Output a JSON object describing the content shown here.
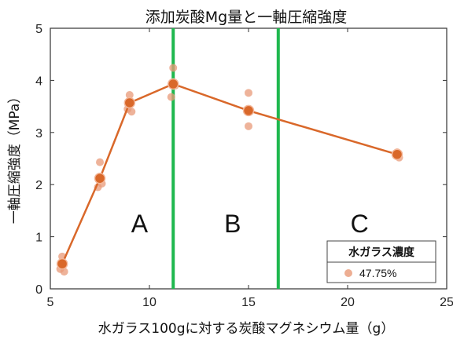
{
  "chart_data": {
    "type": "line",
    "title": "添加炭酸Mg量と一軸圧縮強度",
    "xlabel": "水ガラス100gに対する炭酸マグネシウム量（g）",
    "ylabel": "一軸圧縮強度（MPa）",
    "xlim": [
      5,
      25
    ],
    "ylim": [
      0,
      5
    ],
    "xticks": [
      "5",
      "10",
      "15",
      "20",
      "25"
    ],
    "yticks": [
      "0",
      "1",
      "2",
      "3",
      "4",
      "5"
    ],
    "grid": false,
    "legend": {
      "title": "水ガラス濃度",
      "placement": "bottom-right",
      "entries": [
        {
          "label": "47.75%"
        }
      ]
    },
    "series": [
      {
        "name": "47.75%",
        "color": "#d9682a",
        "mean": [
          {
            "x": 5.6,
            "y": 0.48
          },
          {
            "x": 7.5,
            "y": 2.12
          },
          {
            "x": 9.0,
            "y": 3.57
          },
          {
            "x": 11.2,
            "y": 3.93
          },
          {
            "x": 15.0,
            "y": 3.42
          },
          {
            "x": 22.5,
            "y": 2.58
          }
        ],
        "samples": [
          {
            "x": 5.6,
            "y": 0.62
          },
          {
            "x": 5.5,
            "y": 0.38
          },
          {
            "x": 5.7,
            "y": 0.33
          },
          {
            "x": 7.5,
            "y": 2.43
          },
          {
            "x": 7.4,
            "y": 1.95
          },
          {
            "x": 7.6,
            "y": 2.02
          },
          {
            "x": 9.0,
            "y": 3.72
          },
          {
            "x": 8.9,
            "y": 3.45
          },
          {
            "x": 9.1,
            "y": 3.4
          },
          {
            "x": 11.2,
            "y": 4.24
          },
          {
            "x": 11.1,
            "y": 3.68
          },
          {
            "x": 11.3,
            "y": 3.9
          },
          {
            "x": 15.0,
            "y": 3.76
          },
          {
            "x": 15.0,
            "y": 3.12
          },
          {
            "x": 22.5,
            "y": 2.62
          },
          {
            "x": 22.6,
            "y": 2.52
          }
        ]
      }
    ],
    "boundaries": {
      "color": "#1fb84f",
      "x": [
        11.2,
        16.5
      ]
    },
    "regions": [
      {
        "label": "A",
        "x": 9.5,
        "y": 1.25
      },
      {
        "label": "B",
        "x": 14.2,
        "y": 1.25
      },
      {
        "label": "C",
        "x": 20.6,
        "y": 1.25
      }
    ]
  }
}
